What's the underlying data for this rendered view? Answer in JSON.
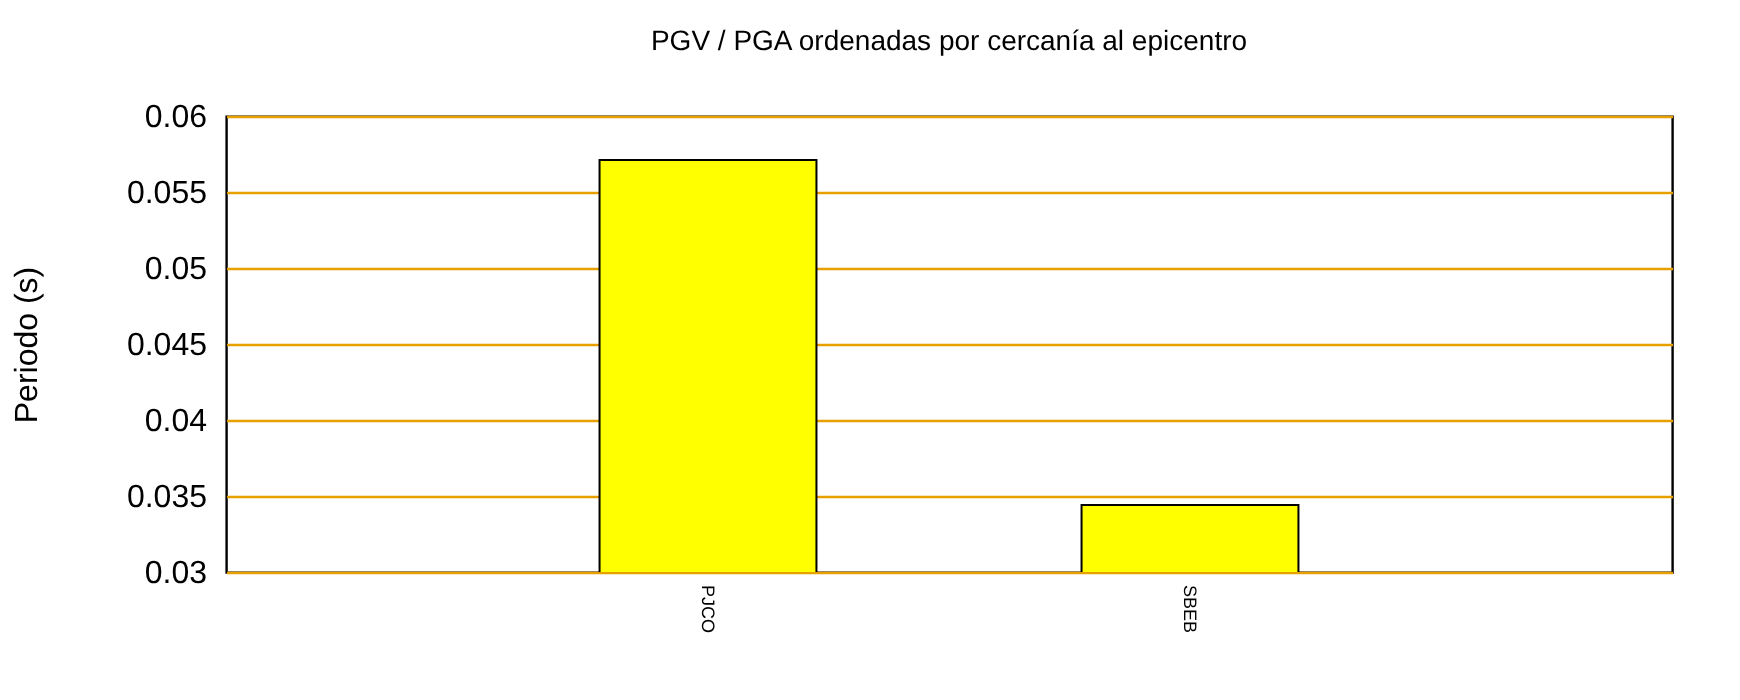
{
  "chart_data": {
    "type": "bar",
    "title": "PGV / PGA ordenadas por cercanía al epicentro",
    "ylabel": "Periodo (s)",
    "categories": [
      "PJCO",
      "SBEB"
    ],
    "values": [
      0.0571,
      0.0344
    ],
    "color": "#ffff00",
    "ylim": [
      0.03,
      0.06
    ],
    "yticks": [
      0.03,
      0.035,
      0.04,
      0.045,
      0.05,
      0.055,
      0.06
    ],
    "grid": "y"
  }
}
